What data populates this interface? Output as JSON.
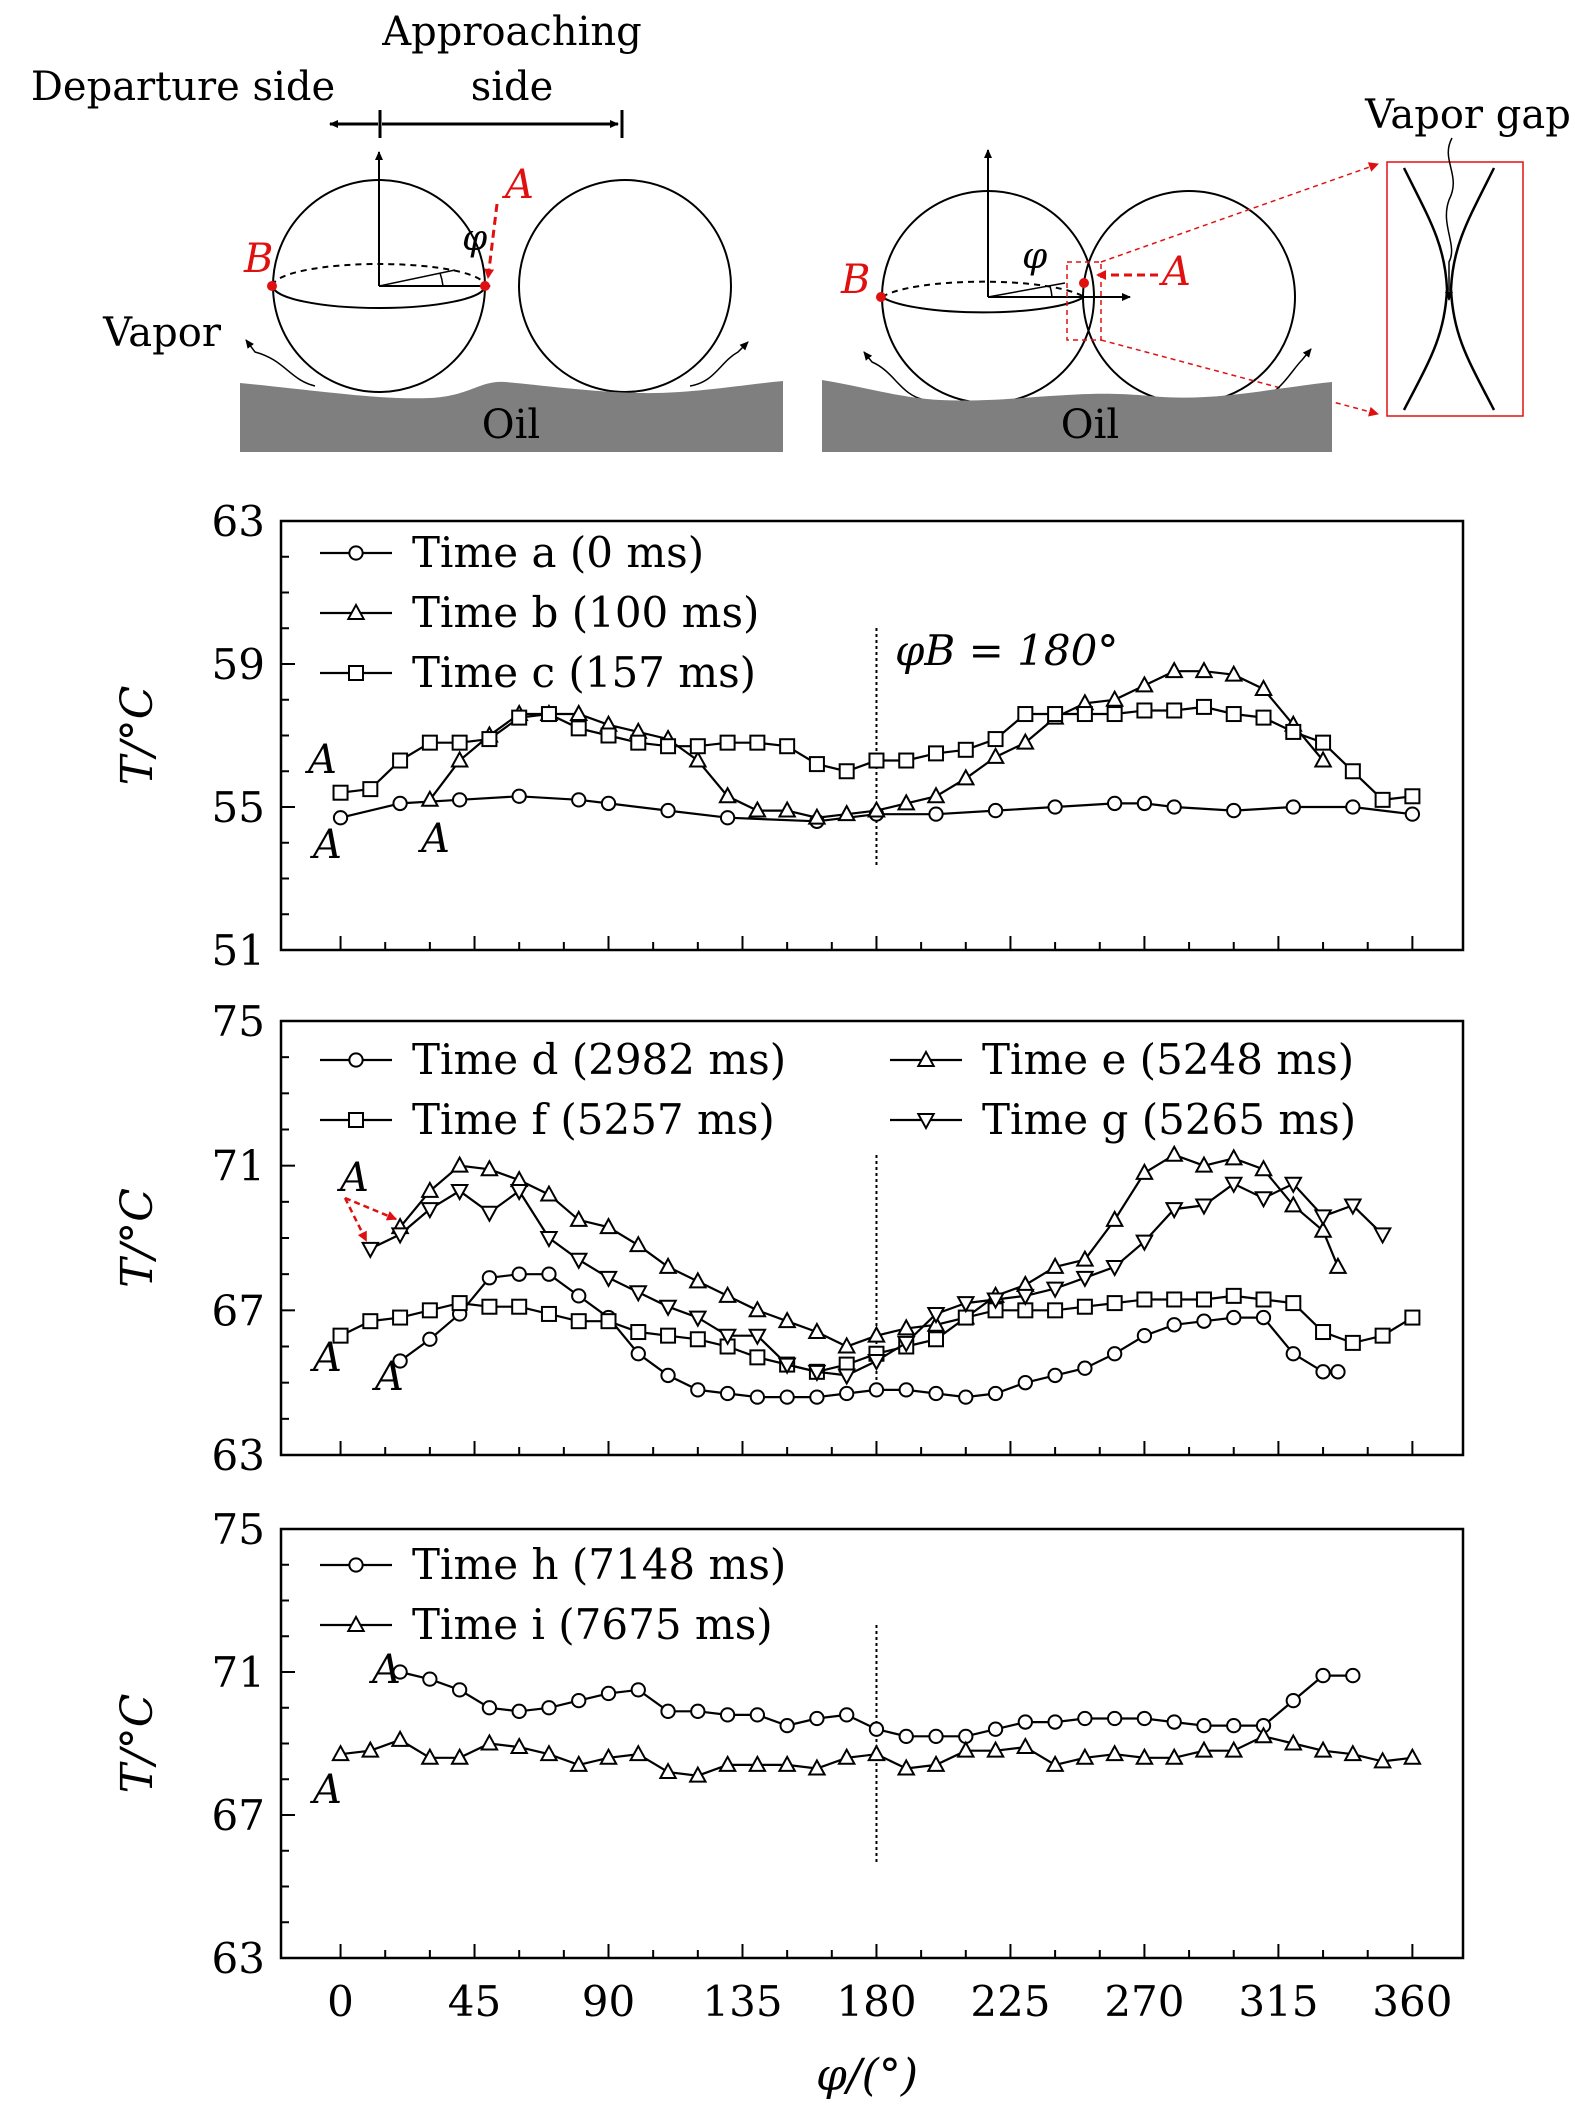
{
  "schematic": {
    "left": {
      "departure_label": "Departure side",
      "approaching_label_line1": "Approaching",
      "approaching_label_line2": "side",
      "point_a": "A",
      "point_b": "B",
      "phi": "φ",
      "vapor_label": "Vapor",
      "oil_label": "Oil"
    },
    "right": {
      "point_a": "A",
      "point_b": "B",
      "phi": "φ",
      "oil_label": "Oil",
      "vapor_gap_label": "Vapor gap"
    }
  },
  "colors": {
    "marker_red": "#e01010",
    "oil": "#7f7f7f"
  },
  "chart_data": [
    {
      "type": "line",
      "ylabel": "T/°C",
      "ylim": [
        51,
        63
      ],
      "yticks": [
        51,
        55,
        59,
        63
      ],
      "xlim": [
        -20,
        377
      ],
      "legend_position": "top-left",
      "annotation": "φB = 180°",
      "point_labels": [
        "A",
        "A",
        "A"
      ],
      "series": [
        {
          "name": "Time a (0 ms)",
          "marker": "circle",
          "x": [
            0,
            20,
            40,
            60,
            80,
            90,
            110,
            130,
            160,
            180,
            200,
            220,
            240,
            260,
            270,
            280,
            300,
            320,
            340,
            360
          ],
          "y": [
            54.7,
            55.1,
            55.2,
            55.3,
            55.2,
            55.1,
            54.9,
            54.7,
            54.6,
            54.8,
            54.8,
            54.9,
            55.0,
            55.1,
            55.1,
            55.0,
            54.9,
            55.0,
            55.0,
            54.8
          ]
        },
        {
          "name": "Time b (100 ms)",
          "marker": "triangle-up",
          "x": [
            30,
            40,
            50,
            60,
            70,
            80,
            90,
            100,
            110,
            120,
            130,
            140,
            150,
            160,
            170,
            180,
            190,
            200,
            210,
            220,
            230,
            240,
            250,
            260,
            270,
            280,
            290,
            300,
            310,
            320,
            330
          ],
          "y": [
            55.2,
            56.3,
            57.0,
            57.6,
            57.6,
            57.6,
            57.3,
            57.1,
            56.9,
            56.3,
            55.3,
            54.9,
            54.9,
            54.7,
            54.8,
            54.9,
            55.1,
            55.3,
            55.8,
            56.4,
            56.8,
            57.5,
            57.9,
            58.0,
            58.4,
            58.8,
            58.8,
            58.7,
            58.3,
            57.3,
            56.3
          ]
        },
        {
          "name": "Time c (157 ms)",
          "marker": "square",
          "x": [
            0,
            10,
            20,
            30,
            40,
            50,
            60,
            70,
            80,
            90,
            100,
            110,
            120,
            130,
            140,
            150,
            160,
            170,
            180,
            190,
            200,
            210,
            220,
            230,
            240,
            250,
            260,
            270,
            280,
            290,
            300,
            310,
            320,
            330,
            340,
            350,
            360
          ],
          "y": [
            55.4,
            55.5,
            56.3,
            56.8,
            56.8,
            56.9,
            57.5,
            57.6,
            57.2,
            57.0,
            56.8,
            56.7,
            56.7,
            56.8,
            56.8,
            56.7,
            56.2,
            56.0,
            56.3,
            56.3,
            56.5,
            56.6,
            56.9,
            57.6,
            57.6,
            57.6,
            57.6,
            57.7,
            57.7,
            57.8,
            57.6,
            57.5,
            57.1,
            56.8,
            56.0,
            55.2,
            55.3
          ]
        }
      ]
    },
    {
      "type": "line",
      "ylabel": "T/°C",
      "ylim": [
        63,
        75
      ],
      "yticks": [
        63,
        67,
        71,
        75
      ],
      "xlim": [
        -20,
        377
      ],
      "legend_position": "top",
      "point_labels": [
        "A",
        "A",
        "A"
      ],
      "series": [
        {
          "name": "Time d (2982 ms)",
          "marker": "circle",
          "x": [
            20,
            30,
            40,
            50,
            60,
            70,
            80,
            90,
            100,
            110,
            120,
            130,
            140,
            150,
            160,
            170,
            180,
            190,
            200,
            210,
            220,
            230,
            240,
            250,
            260,
            270,
            280,
            290,
            300,
            310,
            320,
            330,
            335
          ],
          "y": [
            65.6,
            66.2,
            66.9,
            67.9,
            68.0,
            68.0,
            67.4,
            66.8,
            65.8,
            65.2,
            64.8,
            64.7,
            64.6,
            64.6,
            64.6,
            64.7,
            64.8,
            64.8,
            64.7,
            64.6,
            64.7,
            65.0,
            65.2,
            65.4,
            65.8,
            66.3,
            66.6,
            66.7,
            66.8,
            66.8,
            65.8,
            65.3,
            65.3
          ]
        },
        {
          "name": "Time e (5248 ms)",
          "marker": "triangle-up",
          "x": [
            20,
            30,
            40,
            50,
            60,
            70,
            80,
            90,
            100,
            110,
            120,
            130,
            140,
            150,
            160,
            170,
            180,
            190,
            200,
            210,
            220,
            230,
            240,
            250,
            260,
            270,
            280,
            290,
            300,
            310,
            320,
            330,
            335
          ],
          "y": [
            69.3,
            70.3,
            71.0,
            70.9,
            70.6,
            70.2,
            69.5,
            69.3,
            68.8,
            68.2,
            67.8,
            67.4,
            67.0,
            66.7,
            66.4,
            66.0,
            66.3,
            66.5,
            66.6,
            66.8,
            67.4,
            67.7,
            68.2,
            68.4,
            69.5,
            70.8,
            71.3,
            71.0,
            71.2,
            70.9,
            69.9,
            69.2,
            68.2
          ]
        },
        {
          "name": "Time f (5257 ms)",
          "marker": "square",
          "x": [
            0,
            10,
            20,
            30,
            40,
            50,
            60,
            70,
            80,
            90,
            100,
            110,
            120,
            130,
            140,
            150,
            160,
            170,
            180,
            190,
            200,
            210,
            220,
            230,
            240,
            250,
            260,
            270,
            280,
            290,
            300,
            310,
            320,
            330,
            340,
            350,
            360
          ],
          "y": [
            66.3,
            66.7,
            66.8,
            67.0,
            67.2,
            67.1,
            67.1,
            66.9,
            66.7,
            66.7,
            66.4,
            66.3,
            66.2,
            66.0,
            65.7,
            65.5,
            65.3,
            65.5,
            65.8,
            66.0,
            66.2,
            66.8,
            67.0,
            67.0,
            67.0,
            67.1,
            67.2,
            67.3,
            67.3,
            67.3,
            67.4,
            67.3,
            67.2,
            66.4,
            66.1,
            66.3,
            66.8
          ]
        },
        {
          "name": "Time g (5265 ms)",
          "marker": "triangle-down",
          "x": [
            10,
            20,
            30,
            40,
            50,
            60,
            70,
            80,
            90,
            100,
            110,
            120,
            130,
            140,
            150,
            160,
            170,
            180,
            190,
            200,
            210,
            220,
            230,
            240,
            250,
            260,
            270,
            280,
            290,
            300,
            310,
            320,
            330,
            340,
            350
          ],
          "y": [
            68.7,
            69.1,
            69.8,
            70.3,
            69.7,
            70.3,
            69.0,
            68.4,
            67.9,
            67.5,
            67.1,
            66.8,
            66.3,
            66.3,
            65.5,
            65.3,
            65.2,
            65.6,
            66.1,
            66.9,
            67.2,
            67.3,
            67.4,
            67.6,
            67.9,
            68.2,
            68.9,
            69.8,
            69.9,
            70.5,
            70.1,
            70.5,
            69.6,
            69.9,
            69.1
          ]
        }
      ]
    },
    {
      "type": "line",
      "ylabel": "T/°C",
      "ylim": [
        63,
        75
      ],
      "yticks": [
        63,
        67,
        71,
        75
      ],
      "xlim": [
        -20,
        377
      ],
      "xlabel": "φ/(°)",
      "xticks": [
        0,
        45,
        90,
        135,
        180,
        225,
        270,
        315,
        360
      ],
      "legend_position": "top-left",
      "point_labels": [
        "A",
        "A"
      ],
      "series": [
        {
          "name": "Time h (7148 ms)",
          "marker": "circle",
          "x": [
            20,
            30,
            40,
            50,
            60,
            70,
            80,
            90,
            100,
            110,
            120,
            130,
            140,
            150,
            160,
            170,
            180,
            190,
            200,
            210,
            220,
            230,
            240,
            250,
            260,
            270,
            280,
            290,
            300,
            310,
            320,
            330,
            340
          ],
          "y": [
            71.0,
            70.8,
            70.5,
            70.0,
            69.9,
            70.0,
            70.2,
            70.4,
            70.5,
            69.9,
            69.9,
            69.8,
            69.8,
            69.5,
            69.7,
            69.8,
            69.4,
            69.2,
            69.2,
            69.2,
            69.4,
            69.6,
            69.6,
            69.7,
            69.7,
            69.7,
            69.6,
            69.5,
            69.5,
            69.5,
            70.2,
            70.9,
            70.9
          ]
        },
        {
          "name": "Time i (7675 ms)",
          "marker": "triangle-up",
          "x": [
            0,
            10,
            20,
            30,
            40,
            50,
            60,
            70,
            80,
            90,
            100,
            110,
            120,
            130,
            140,
            150,
            160,
            170,
            180,
            190,
            200,
            210,
            220,
            230,
            240,
            250,
            260,
            270,
            280,
            290,
            300,
            310,
            320,
            330,
            340,
            350,
            360
          ],
          "y": [
            68.7,
            68.8,
            69.1,
            68.6,
            68.6,
            69.0,
            68.9,
            68.7,
            68.4,
            68.6,
            68.7,
            68.2,
            68.1,
            68.4,
            68.4,
            68.4,
            68.3,
            68.6,
            68.7,
            68.3,
            68.4,
            68.8,
            68.8,
            68.9,
            68.4,
            68.6,
            68.7,
            68.6,
            68.6,
            68.8,
            68.8,
            69.2,
            69.0,
            68.8,
            68.7,
            68.5,
            68.6
          ]
        }
      ]
    }
  ]
}
